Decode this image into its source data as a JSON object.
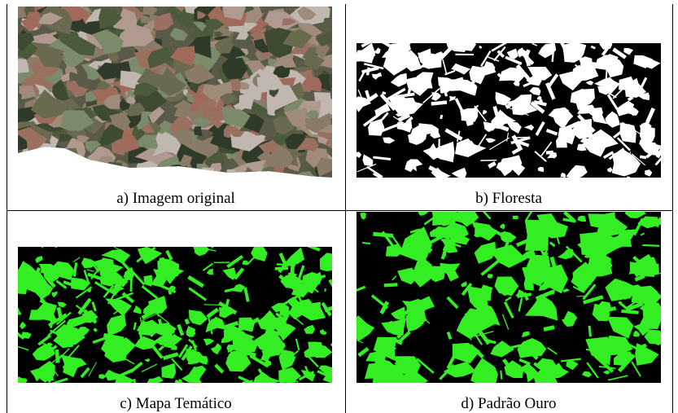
{
  "figure": {
    "panels": [
      {
        "caption": "a) Imagem original"
      },
      {
        "caption": "b) Floresta"
      },
      {
        "caption": "c) Mapa Temático"
      },
      {
        "caption": "d) Padrão Ouro"
      }
    ]
  }
}
